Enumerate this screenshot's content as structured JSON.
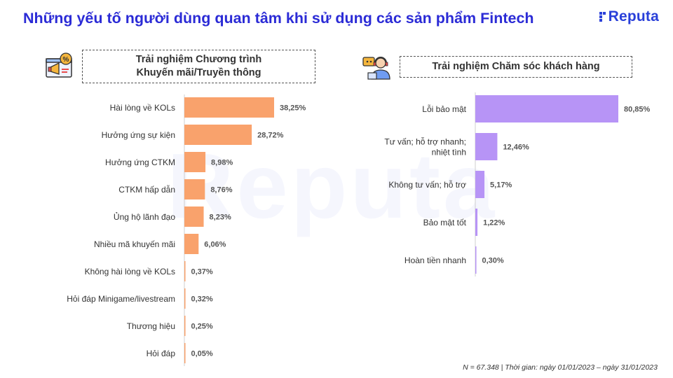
{
  "title": "Những yếu tố người dùng quan tâm khi sử dụng các sản phẩm Fintech",
  "brand": {
    "name": "Reputa",
    "color": "#2a40d9"
  },
  "watermark": "Reputa",
  "icons": {
    "left": "megaphone-percent-icon",
    "right": "support-agent-icon"
  },
  "footnote": "N = 67.348 | Thời gian: ngày 01/01/2023 – ngày 31/01/2023",
  "chart_data": [
    {
      "type": "bar",
      "orientation": "horizontal",
      "title_lines": [
        "Trải nghiệm Chương trình",
        "Khuyến mãi/Truyền thông"
      ],
      "color": "#f9a26c",
      "categories": [
        [
          "Hài lòng về KOLs"
        ],
        [
          "Hưởng ứng sự kiện"
        ],
        [
          "Hưởng ứng CTKM"
        ],
        [
          "CTKM hấp dẫn"
        ],
        [
          "Ủng hộ lãnh đạo"
        ],
        [
          "Nhiều mã khuyến mãi"
        ],
        [
          "Không hài lòng về KOLs"
        ],
        [
          "Hỏi đáp Minigame/livestream"
        ],
        [
          "Thương hiệu"
        ],
        [
          "Hỏi đáp"
        ]
      ],
      "values": [
        38.25,
        28.72,
        8.98,
        8.76,
        8.23,
        6.06,
        0.37,
        0.32,
        0.25,
        0.05
      ],
      "labels": [
        "38,25%",
        "28,72%",
        "8,98%",
        "8,76%",
        "8,23%",
        "6,06%",
        "0,37%",
        "0,32%",
        "0,25%",
        "0,05%"
      ],
      "xlim": [
        0,
        38.25
      ]
    },
    {
      "type": "bar",
      "orientation": "horizontal",
      "title_lines": [
        "Trải nghiệm Chăm sóc khách hàng"
      ],
      "color": "#b794f6",
      "categories": [
        [
          "Lỗi bảo mật"
        ],
        [
          "Tư vấn; hỗ trợ nhanh;",
          "nhiệt tình"
        ],
        [
          "Không tư vấn; hỗ trợ"
        ],
        [
          "Bảo mật tốt"
        ],
        [
          "Hoàn tiền nhanh"
        ]
      ],
      "values": [
        80.85,
        12.46,
        5.17,
        1.22,
        0.3
      ],
      "labels": [
        "80,85%",
        "12,46%",
        "5,17%",
        "1,22%",
        "0,30%"
      ],
      "xlim": [
        0,
        80.85
      ]
    }
  ]
}
